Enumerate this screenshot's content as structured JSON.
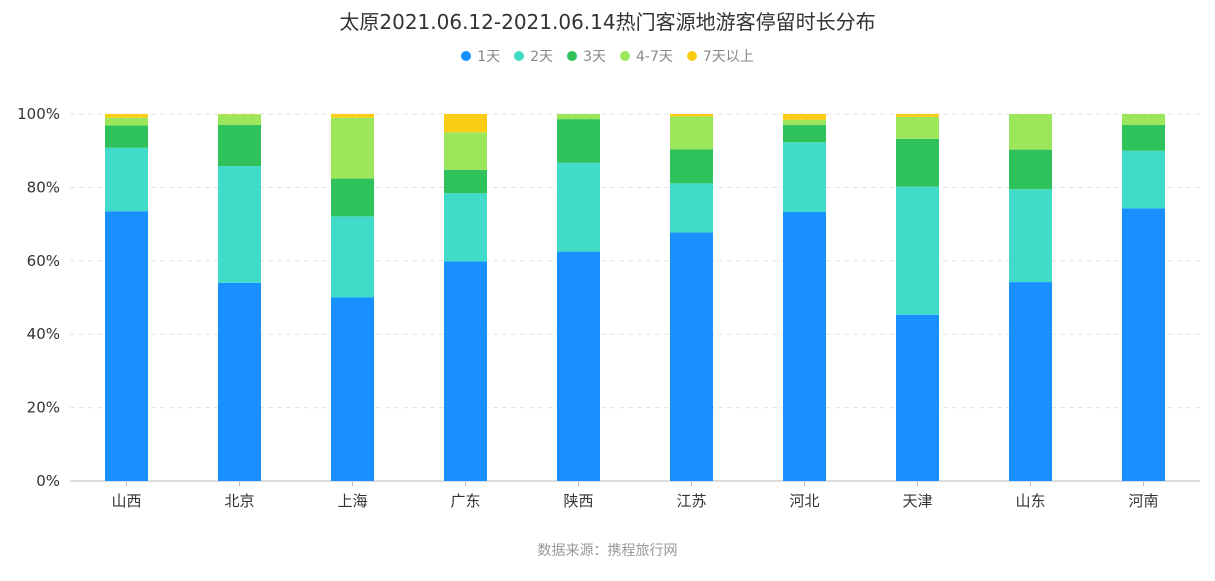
{
  "chart_data": {
    "type": "bar",
    "stacked": true,
    "title": "太原2021.06.12-2021.06.14热门客源地游客停留时长分布",
    "categories": [
      "山西",
      "北京",
      "上海",
      "广东",
      "陕西",
      "江苏",
      "河北",
      "天津",
      "山东",
      "河南"
    ],
    "series": [
      {
        "name": "1天",
        "color": "#1890ff",
        "values": [
          73.5,
          54.0,
          50.0,
          59.8,
          62.5,
          67.7,
          73.3,
          45.3,
          54.2,
          74.3
        ]
      },
      {
        "name": "2天",
        "color": "#40dbc9",
        "values": [
          17.3,
          31.8,
          22.1,
          18.6,
          24.2,
          13.4,
          19.0,
          34.9,
          25.3,
          15.7
        ]
      },
      {
        "name": "3天",
        "color": "#2fc25b",
        "values": [
          6.1,
          11.2,
          10.3,
          6.4,
          11.9,
          9.3,
          4.7,
          13.0,
          10.8,
          7.0
        ]
      },
      {
        "name": "4-7天",
        "color": "#9ce65c",
        "values": [
          2.1,
          2.9,
          16.6,
          10.2,
          1.4,
          8.9,
          1.4,
          6.0,
          9.7,
          3.0
        ]
      },
      {
        "name": "7天以上",
        "color": "#facc14",
        "values": [
          1.0,
          0.1,
          1.0,
          5.0,
          0.0,
          0.7,
          1.6,
          0.8,
          0.0,
          0.0
        ]
      }
    ],
    "yaxis": {
      "min": 0,
      "max": 100,
      "ticks": [
        0,
        20,
        40,
        60,
        80,
        100
      ],
      "tick_labels": [
        "0%",
        "20%",
        "40%",
        "60%",
        "80%",
        "100%"
      ]
    },
    "grid": true,
    "legend_position": "top-center"
  },
  "source_note": "数据来源：携程旅行网"
}
